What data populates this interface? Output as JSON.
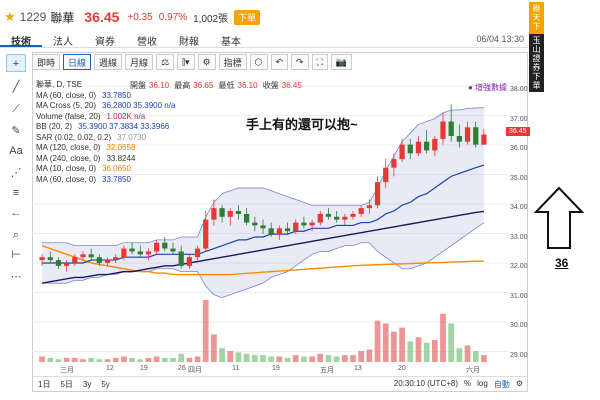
{
  "header": {
    "code": "1229",
    "name": "聯華",
    "price": "36.45",
    "change": "+0.35",
    "pct": "0.97%",
    "volume": "1,002張",
    "badge": "下單"
  },
  "tabs": [
    "技術",
    "法人",
    "資券",
    "營收",
    "財報",
    "基本"
  ],
  "tab_time": "06/04 13:30",
  "banner": {
    "top": "聯天下",
    "bottom": "玉山證券下單"
  },
  "toolbar": [
    "即時",
    "日線",
    "週線",
    "月線",
    "⚖",
    "⫿▾",
    "⚙",
    "指標",
    "⬡",
    "↶",
    "↷",
    "⛶",
    "📷"
  ],
  "tools": [
    "cursor-icon",
    "line-icon",
    "trend-icon",
    "pen-icon",
    "text-icon",
    "network-icon",
    "fib-icon",
    "back-icon",
    "zoom-icon",
    "ruler-icon",
    "more-icon"
  ],
  "legend": {
    "title": "聯華, D, TSE",
    "rows": [
      {
        "label": "MA (60, close, 0)",
        "value": "33.7850",
        "color": "#1e40af"
      },
      {
        "label": "MA Cross (5, 20)",
        "value": "36.2800 35.3900 n/a",
        "color": "#1e40af"
      },
      {
        "label": "Volume (false, 20)",
        "value": "1.002K n/a",
        "color": "#c2185b"
      },
      {
        "label": "BB (20, 2)",
        "value": "35.3900 37.3834 33.3966",
        "color": "#1e40af"
      },
      {
        "label": "SAR (0.02, 0.02, 0.2)",
        "value": "37.0730",
        "color": "#999999"
      },
      {
        "label": "MA (120, close, 0)",
        "value": "32.0658",
        "color": "#f57c00"
      },
      {
        "label": "MA (240, close, 0)",
        "value": "33.8244",
        "color": "#333333"
      },
      {
        "label": "MA (10, close, 0)",
        "value": "36.0650",
        "color": "#f57c00"
      },
      {
        "label": "MA (60, close, 0)",
        "value": "33.7850",
        "color": "#1e40af"
      }
    ]
  },
  "ohlc": {
    "open_label": "開盤",
    "open": "36.10",
    "high_label": "最高",
    "high": "36.65",
    "low_label": "最低",
    "low": "36.10",
    "close_label": "收盤",
    "close": "36.45"
  },
  "note": "手上有的還可以抱~",
  "add_link": "● 增強數據",
  "price_tag": "36.45",
  "y_ticks": [
    "38.00",
    "37.00",
    "36.00",
    "35.00",
    "34.00",
    "33.00",
    "32.00",
    "31.00",
    "30.00",
    "29.00"
  ],
  "x_ticks": [
    "三月",
    "12",
    "19",
    "26",
    "四月",
    "11",
    "19",
    "五月",
    "13",
    "20",
    "六月"
  ],
  "bottom": {
    "ranges": [
      "1日",
      "5日",
      "3y",
      "5y"
    ],
    "time": "20:30:10 (UTC+8)",
    "pct": "%",
    "log": "log",
    "auto": "自動",
    "gear": "⚙"
  },
  "annotation": {
    "value": "36"
  },
  "chart_data": {
    "type": "line",
    "title": "聯華, D, TSE",
    "ylim": [
      28.5,
      38.2
    ],
    "candles": [
      [
        32.1,
        32.3,
        31.9,
        32.2
      ],
      [
        32.2,
        32.4,
        32.0,
        32.1
      ],
      [
        32.1,
        32.2,
        31.8,
        31.9
      ],
      [
        31.9,
        32.1,
        31.7,
        32.0
      ],
      [
        32.0,
        32.3,
        31.9,
        32.2
      ],
      [
        32.2,
        32.4,
        32.1,
        32.3
      ],
      [
        32.3,
        32.5,
        32.1,
        32.2
      ],
      [
        32.2,
        32.3,
        31.9,
        32.0
      ],
      [
        32.0,
        32.2,
        31.9,
        32.1
      ],
      [
        32.1,
        32.3,
        32.0,
        32.2
      ],
      [
        32.2,
        32.6,
        32.1,
        32.5
      ],
      [
        32.5,
        32.7,
        32.3,
        32.4
      ],
      [
        32.4,
        32.6,
        32.2,
        32.3
      ],
      [
        32.3,
        32.5,
        32.1,
        32.4
      ],
      [
        32.4,
        32.8,
        32.3,
        32.7
      ],
      [
        32.7,
        32.9,
        32.4,
        32.5
      ],
      [
        32.5,
        32.7,
        32.3,
        32.4
      ],
      [
        32.4,
        32.6,
        31.8,
        31.9
      ],
      [
        31.9,
        32.3,
        31.8,
        32.2
      ],
      [
        32.2,
        32.6,
        32.1,
        32.5
      ],
      [
        32.5,
        33.8,
        32.4,
        33.5
      ],
      [
        33.5,
        34.2,
        33.3,
        33.9
      ],
      [
        33.9,
        34.0,
        33.4,
        33.6
      ],
      [
        33.6,
        33.9,
        33.3,
        33.8
      ],
      [
        33.8,
        34.0,
        33.5,
        33.7
      ],
      [
        33.7,
        33.9,
        33.3,
        33.4
      ],
      [
        33.4,
        33.6,
        33.1,
        33.3
      ],
      [
        33.3,
        33.5,
        33.0,
        33.2
      ],
      [
        33.2,
        33.4,
        32.9,
        33.0
      ],
      [
        33.0,
        33.3,
        32.8,
        33.2
      ],
      [
        33.2,
        33.4,
        33.0,
        33.1
      ],
      [
        33.1,
        33.5,
        33.0,
        33.4
      ],
      [
        33.4,
        33.6,
        33.2,
        33.3
      ],
      [
        33.3,
        33.5,
        33.1,
        33.4
      ],
      [
        33.4,
        33.8,
        33.3,
        33.7
      ],
      [
        33.7,
        33.9,
        33.5,
        33.6
      ],
      [
        33.6,
        33.8,
        33.4,
        33.5
      ],
      [
        33.5,
        33.7,
        33.3,
        33.6
      ],
      [
        33.6,
        33.8,
        33.5,
        33.7
      ],
      [
        33.7,
        34.0,
        33.6,
        33.9
      ],
      [
        33.9,
        34.2,
        33.7,
        34.0
      ],
      [
        34.0,
        35.0,
        33.9,
        34.8
      ],
      [
        34.8,
        35.6,
        34.6,
        35.3
      ],
      [
        35.3,
        35.8,
        35.0,
        35.6
      ],
      [
        35.6,
        36.3,
        35.5,
        36.1
      ],
      [
        36.1,
        36.3,
        35.6,
        35.8
      ],
      [
        35.8,
        36.4,
        35.7,
        36.2
      ],
      [
        36.2,
        36.6,
        35.8,
        35.9
      ],
      [
        35.9,
        36.4,
        35.7,
        36.3
      ],
      [
        36.3,
        37.2,
        36.1,
        36.9
      ],
      [
        36.9,
        37.5,
        36.2,
        36.4
      ],
      [
        36.4,
        36.8,
        36.0,
        36.2
      ],
      [
        36.2,
        36.9,
        36.1,
        36.7
      ],
      [
        36.7,
        36.9,
        36.0,
        36.1
      ],
      [
        36.1,
        36.65,
        36.1,
        36.45
      ]
    ],
    "volume": [
      4,
      3,
      2,
      3,
      3,
      2,
      3,
      2,
      2,
      3,
      4,
      3,
      2,
      3,
      4,
      3,
      3,
      6,
      3,
      4,
      45,
      20,
      10,
      8,
      7,
      6,
      5,
      5,
      4,
      4,
      3,
      5,
      4,
      4,
      6,
      5,
      4,
      5,
      5,
      8,
      9,
      30,
      28,
      22,
      25,
      15,
      18,
      14,
      16,
      35,
      28,
      10,
      12,
      8,
      5
    ],
    "ma20": [
      32.0,
      32.0,
      32.0,
      32.0,
      32.0,
      32.0,
      32.1,
      32.1,
      32.1,
      32.1,
      32.2,
      32.2,
      32.2,
      32.2,
      32.3,
      32.3,
      32.3,
      32.3,
      32.3,
      32.3,
      32.4,
      32.5,
      32.6,
      32.7,
      32.8,
      32.8,
      32.9,
      32.9,
      33.0,
      33.0,
      33.0,
      33.1,
      33.1,
      33.2,
      33.2,
      33.2,
      33.3,
      33.3,
      33.3,
      33.4,
      33.4,
      33.5,
      33.7,
      33.8,
      34.0,
      34.1,
      34.3,
      34.4,
      34.6,
      34.8,
      35.0,
      35.1,
      35.2,
      35.3,
      35.39
    ],
    "ma60": [
      31.3,
      31.35,
      31.4,
      31.45,
      31.5,
      31.5,
      31.55,
      31.6,
      31.6,
      31.65,
      31.7,
      31.7,
      31.75,
      31.8,
      31.85,
      31.9,
      31.9,
      31.95,
      32.0,
      32.05,
      32.1,
      32.15,
      32.2,
      32.25,
      32.3,
      32.35,
      32.4,
      32.45,
      32.5,
      32.55,
      32.6,
      32.65,
      32.7,
      32.75,
      32.8,
      32.85,
      32.9,
      32.95,
      33.0,
      33.05,
      33.1,
      33.15,
      33.2,
      33.25,
      33.3,
      33.35,
      33.4,
      33.45,
      33.5,
      33.55,
      33.6,
      33.65,
      33.7,
      33.75,
      33.785
    ],
    "ma120": [
      32.6,
      32.5,
      32.4,
      32.3,
      32.2,
      32.1,
      32.0,
      31.95,
      31.9,
      31.85,
      31.8,
      31.75,
      31.7,
      31.7,
      31.65,
      31.65,
      31.6,
      31.6,
      31.6,
      31.6,
      31.6,
      31.6,
      31.6,
      31.6,
      31.62,
      31.64,
      31.66,
      31.68,
      31.7,
      31.72,
      31.74,
      31.76,
      31.78,
      31.8,
      31.82,
      31.84,
      31.86,
      31.88,
      31.9,
      31.92,
      31.93,
      31.94,
      31.95,
      31.96,
      31.97,
      31.98,
      31.99,
      32.0,
      32.01,
      32.02,
      32.03,
      32.04,
      32.05,
      32.06,
      32.066
    ],
    "bb_upper": [
      32.7,
      32.7,
      32.7,
      32.7,
      32.6,
      32.6,
      32.6,
      32.6,
      32.6,
      32.6,
      32.7,
      32.7,
      32.7,
      32.7,
      32.8,
      32.8,
      32.8,
      32.9,
      32.9,
      32.9,
      33.6,
      34.1,
      34.4,
      34.5,
      34.6,
      34.6,
      34.6,
      34.6,
      34.5,
      34.4,
      34.3,
      34.2,
      34.1,
      34.0,
      34.0,
      34.0,
      34.0,
      34.0,
      34.0,
      34.0,
      34.1,
      34.6,
      35.2,
      35.7,
      36.2,
      36.5,
      36.8,
      36.9,
      37.0,
      37.2,
      37.3,
      37.3,
      37.35,
      37.37,
      37.38
    ],
    "bb_lower": [
      31.3,
      31.3,
      31.3,
      31.3,
      31.4,
      31.4,
      31.5,
      31.5,
      31.6,
      31.6,
      31.7,
      31.7,
      31.7,
      31.7,
      31.8,
      31.8,
      31.8,
      31.7,
      31.7,
      31.7,
      31.2,
      30.9,
      30.8,
      30.9,
      31.0,
      31.1,
      31.2,
      31.3,
      31.5,
      31.6,
      31.7,
      31.9,
      32.1,
      32.3,
      32.4,
      32.4,
      32.5,
      32.6,
      32.6,
      32.7,
      32.7,
      32.4,
      32.2,
      32.0,
      31.8,
      31.8,
      31.9,
      32.0,
      32.2,
      32.4,
      32.6,
      32.8,
      33.0,
      33.2,
      33.3966
    ]
  }
}
